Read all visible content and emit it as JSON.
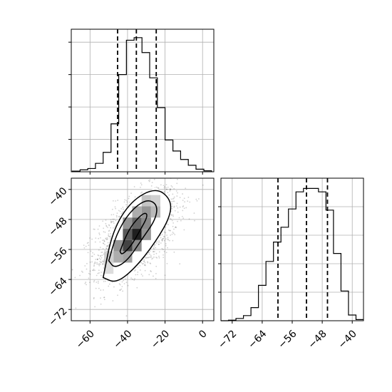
{
  "chart_data": [
    {
      "type": "histogram",
      "panel": "top-left",
      "xlim": [
        -70,
        6
      ],
      "grid": true,
      "bins_x": [
        -69.5,
        -65.3,
        -61.2,
        -57.1,
        -53.0,
        -48.8,
        -44.7,
        -40.6,
        -36.5,
        -32.3,
        -28.2,
        -24.1,
        -20.0,
        -15.8,
        -11.7,
        -7.6,
        -3.5,
        0.7,
        4.8
      ],
      "counts": [
        2,
        6,
        10,
        26,
        60,
        148,
        300,
        406,
        414,
        368,
        290,
        198,
        98,
        64,
        38,
        20,
        8,
        3
      ],
      "ylim": [
        0,
        440
      ],
      "y_ticks": [
        100,
        200,
        300,
        400
      ],
      "quantiles": [
        -45.3,
        -35.3,
        -24.7
      ],
      "x_tick_labels_shown": false,
      "y_tick_labels_shown": false
    },
    {
      "type": "histogram",
      "panel": "bottom-right",
      "xlim": [
        -75,
        -37
      ],
      "grid": true,
      "bins_x": [
        -75.0,
        -73.0,
        -71.0,
        -69.0,
        -67.0,
        -65.0,
        -63.0,
        -61.0,
        -59.0,
        -57.0,
        -55.0,
        -53.0,
        -51.0,
        -49.0,
        -47.0,
        -45.0,
        -43.0,
        -41.0,
        -39.0,
        -37.0
      ],
      "counts": [
        0,
        1,
        4,
        9,
        23,
        62,
        104,
        138,
        164,
        196,
        226,
        232,
        232,
        226,
        194,
        118,
        52,
        10,
        2
      ],
      "ylim": [
        0,
        250
      ],
      "y_ticks": [
        50,
        100,
        150,
        200
      ],
      "quantiles": [
        -59.8,
        -52.2,
        -46.6
      ],
      "x_ticks": [
        -72,
        -64,
        -56,
        -48,
        -40
      ],
      "x_tick_labels": [
        "−72",
        "−64",
        "−56",
        "−48",
        "−40"
      ],
      "y_tick_labels_shown": false
    },
    {
      "type": "scatter",
      "panel": "bottom-left",
      "description_level": "2d-density-with-contours",
      "xlim": [
        -70,
        6
      ],
      "ylim": [
        -75,
        -37
      ],
      "grid": true,
      "center": [
        -35,
        -52
      ],
      "x_ticks": [
        -60,
        -40,
        -20,
        0
      ],
      "x_tick_labels": [
        "−60",
        "−40",
        "−20",
        "0"
      ],
      "y_ticks": [
        -72,
        -64,
        -56,
        -48,
        -40
      ],
      "y_tick_labels": [
        "−72",
        "−64",
        "−56",
        "−48",
        "−40"
      ],
      "contours": [
        [
          [
            -44,
            -56.5
          ],
          [
            -43,
            -57.5
          ],
          [
            -38,
            -55
          ],
          [
            -34,
            -51.5
          ],
          [
            -29,
            -47
          ],
          [
            -31,
            -46
          ],
          [
            -37,
            -49
          ],
          [
            -41,
            -52.5
          ],
          [
            -44,
            -56.5
          ]
        ],
        [
          [
            -50,
            -59
          ],
          [
            -47,
            -61
          ],
          [
            -40,
            -59
          ],
          [
            -32,
            -53
          ],
          [
            -25,
            -48
          ],
          [
            -24,
            -44
          ],
          [
            -30,
            -42.5
          ],
          [
            -39,
            -46
          ],
          [
            -46,
            -52
          ],
          [
            -50,
            -59
          ]
        ],
        [
          [
            -53,
            -63.5
          ],
          [
            -46,
            -65
          ],
          [
            -36,
            -61
          ],
          [
            -25,
            -54
          ],
          [
            -17,
            -47
          ],
          [
            -17,
            -42.5
          ],
          [
            -25,
            -39.5
          ],
          [
            -38,
            -43
          ],
          [
            -48,
            -51
          ],
          [
            -53,
            -63.5
          ]
        ]
      ],
      "density_cells": [
        {
          "x": -30,
          "y": -46,
          "w": 5,
          "h": 3,
          "shade": 0.45
        },
        {
          "x": -35,
          "y": -46,
          "w": 5,
          "h": 3,
          "shade": 0.35
        },
        {
          "x": -35,
          "y": -49,
          "w": 5,
          "h": 3,
          "shade": 0.65
        },
        {
          "x": -40,
          "y": -49,
          "w": 5,
          "h": 3,
          "shade": 0.45
        },
        {
          "x": -30,
          "y": -49,
          "w": 5,
          "h": 3,
          "shade": 0.5
        },
        {
          "x": -35,
          "y": -52,
          "w": 5,
          "h": 3,
          "shade": 0.95
        },
        {
          "x": -40,
          "y": -52,
          "w": 5,
          "h": 3,
          "shade": 0.7
        },
        {
          "x": -30,
          "y": -52,
          "w": 5,
          "h": 3,
          "shade": 0.45
        },
        {
          "x": -40,
          "y": -55,
          "w": 5,
          "h": 3,
          "shade": 0.8
        },
        {
          "x": -45,
          "y": -55,
          "w": 5,
          "h": 3,
          "shade": 0.45
        },
        {
          "x": -35,
          "y": -55,
          "w": 5,
          "h": 3,
          "shade": 0.5
        },
        {
          "x": -45,
          "y": -58,
          "w": 5,
          "h": 3,
          "shade": 0.35
        },
        {
          "x": -40,
          "y": -58,
          "w": 5,
          "h": 3,
          "shade": 0.4
        },
        {
          "x": -25,
          "y": -46,
          "w": 5,
          "h": 3,
          "shade": 0.3
        },
        {
          "x": -25,
          "y": -43,
          "w": 5,
          "h": 3,
          "shade": 0.2
        },
        {
          "x": -30,
          "y": -43,
          "w": 5,
          "h": 3,
          "shade": 0.25
        },
        {
          "x": -50,
          "y": -58,
          "w": 5,
          "h": 3,
          "shade": 0.2
        },
        {
          "x": -50,
          "y": -61,
          "w": 5,
          "h": 3,
          "shade": 0.15
        }
      ]
    }
  ]
}
